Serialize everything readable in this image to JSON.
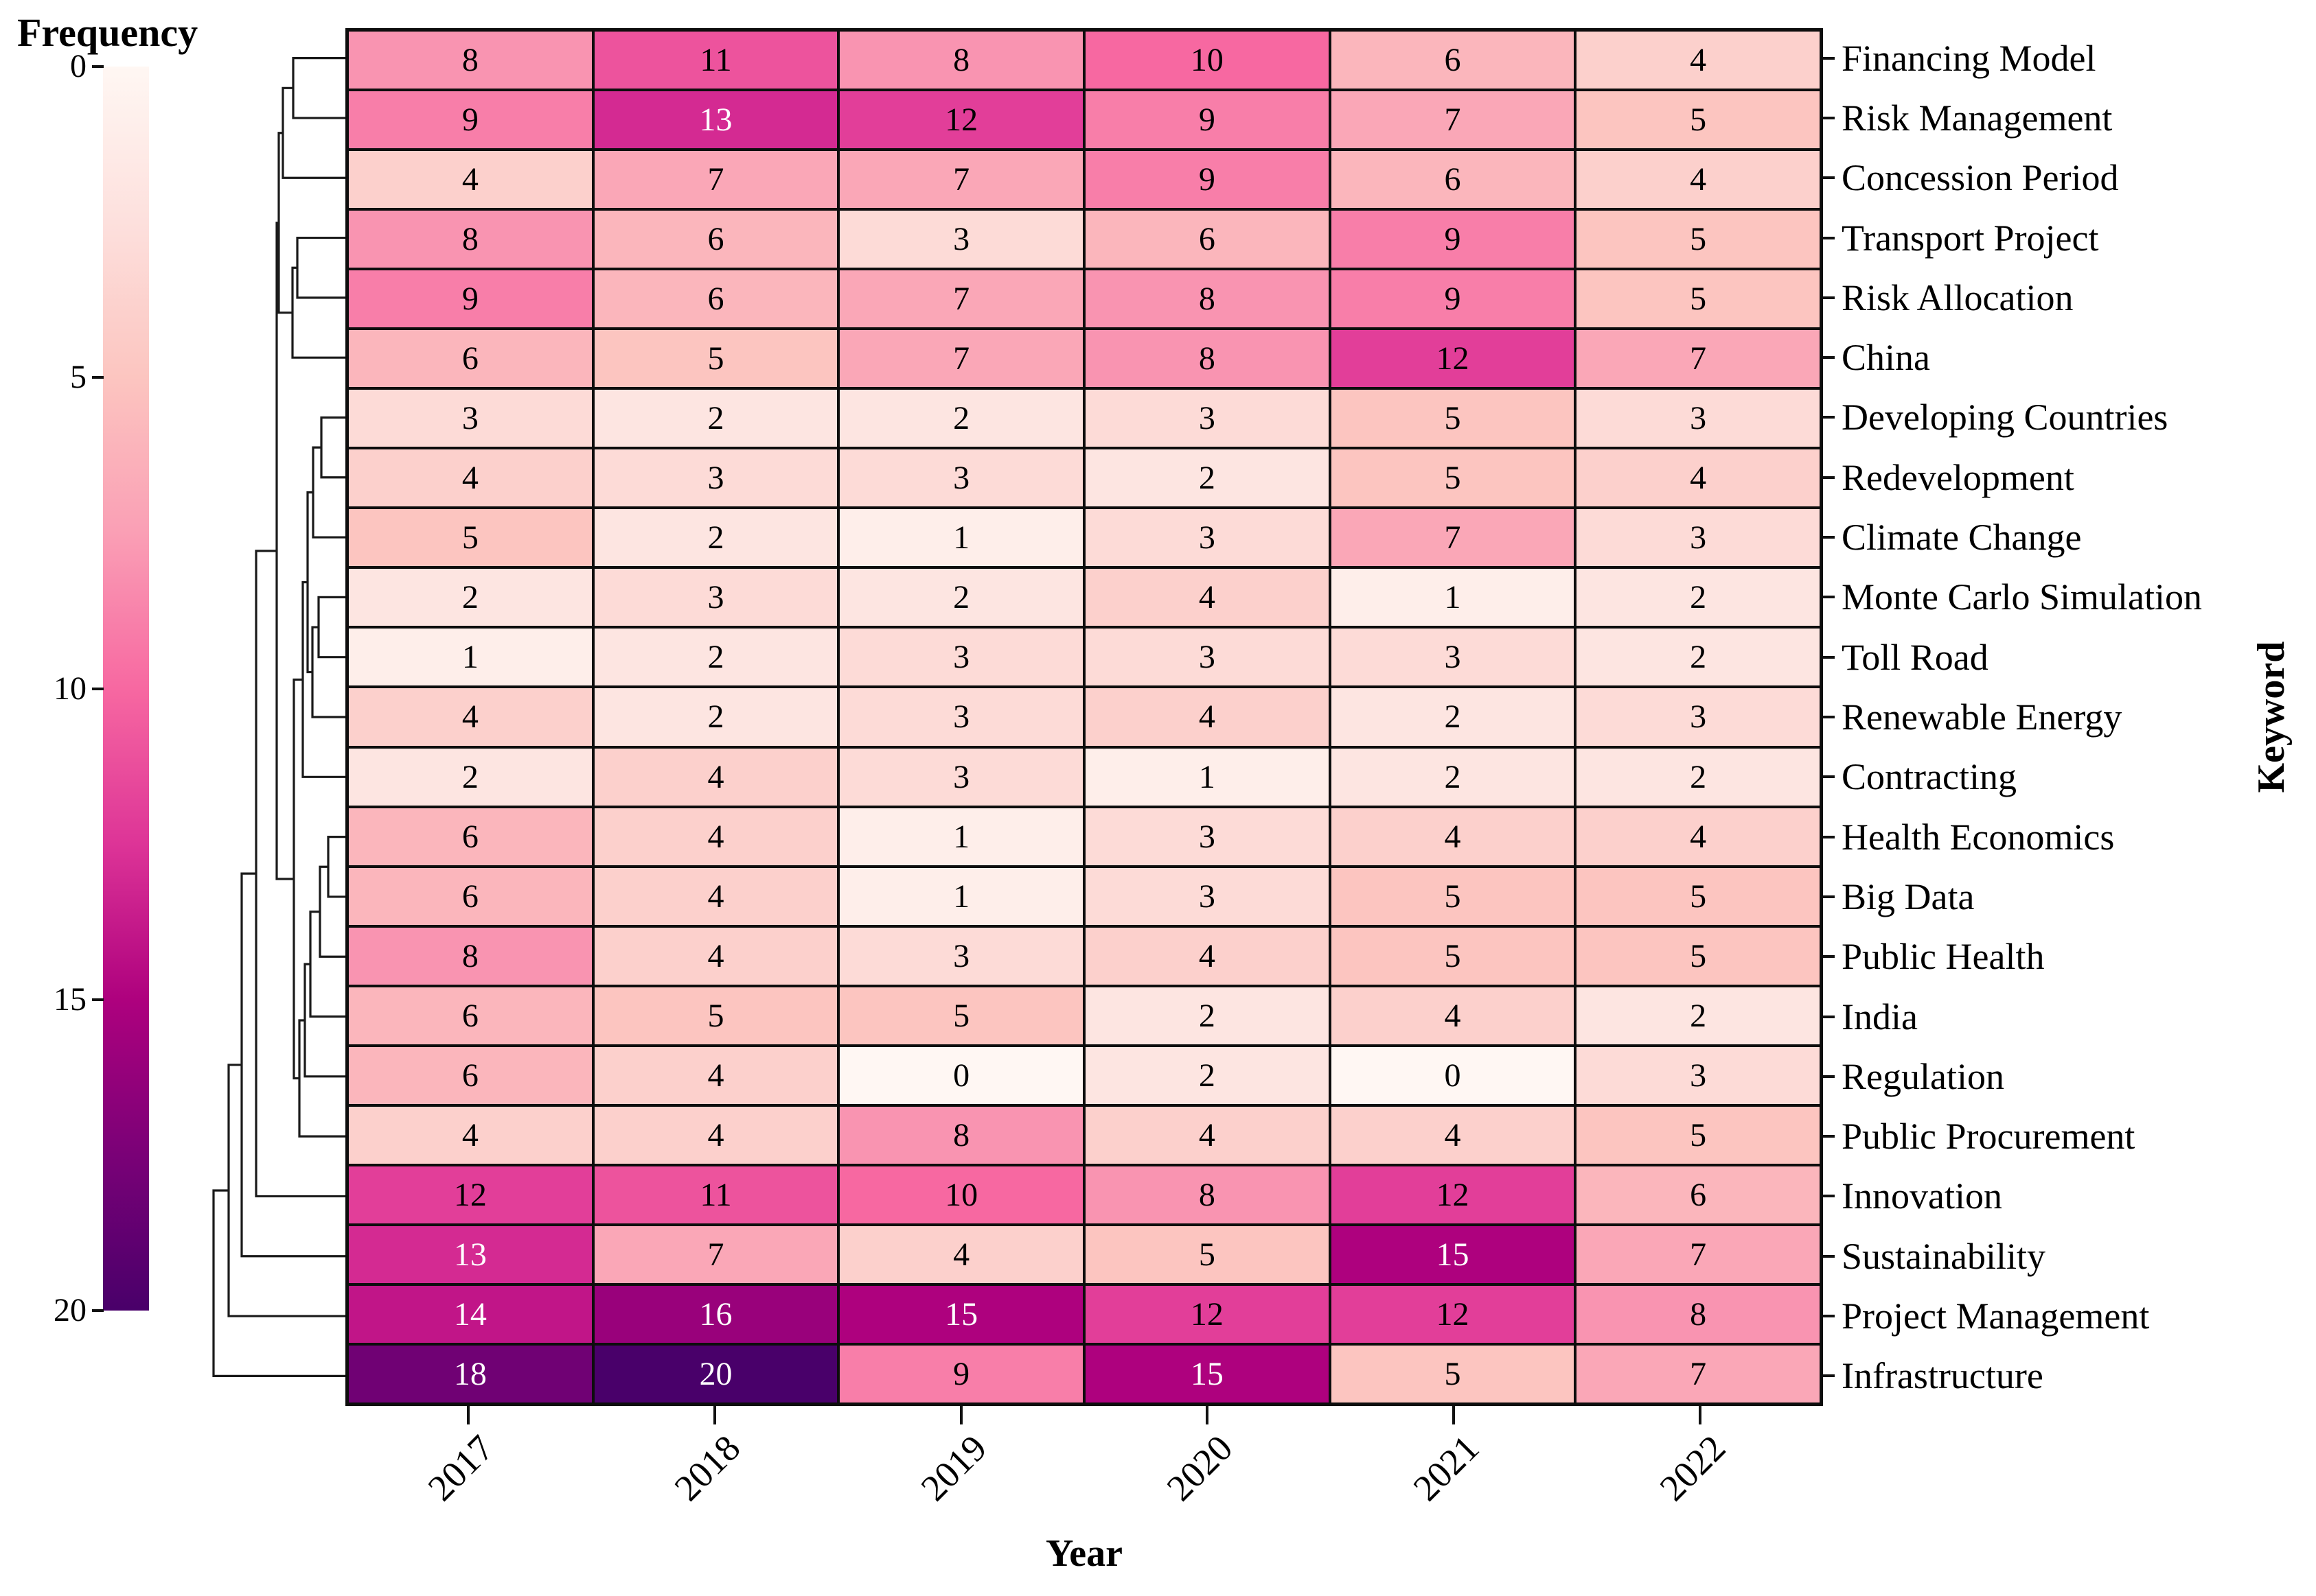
{
  "figure": {
    "colorbar_title": "Frequency",
    "xlabel": "Year",
    "ylabel": "Keyword"
  },
  "chart_data": {
    "type": "heatmap",
    "title": "",
    "xlabel": "Year",
    "ylabel": "Keyword",
    "x_categories": [
      "2017",
      "2018",
      "2019",
      "2020",
      "2021",
      "2022"
    ],
    "y_categories": [
      "Financing Model",
      "Risk Management",
      "Concession Period",
      "Transport Project",
      "Risk Allocation",
      "China",
      "Developing Countries",
      "Redevelopment",
      "Climate Change",
      "Monte Carlo Simulation",
      "Toll Road",
      "Renewable Energy",
      "Contracting",
      "Health Economics",
      "Big Data",
      "Public Health",
      "India",
      "Regulation",
      "Public Procurement",
      "Innovation",
      "Sustainability",
      "Project Management",
      "Infrastructure"
    ],
    "values": [
      [
        8,
        11,
        8,
        10,
        6,
        4
      ],
      [
        9,
        13,
        12,
        9,
        7,
        5
      ],
      [
        4,
        7,
        7,
        9,
        6,
        4
      ],
      [
        8,
        6,
        3,
        6,
        9,
        5
      ],
      [
        9,
        6,
        7,
        8,
        9,
        5
      ],
      [
        6,
        5,
        7,
        8,
        12,
        7
      ],
      [
        3,
        2,
        2,
        3,
        5,
        3
      ],
      [
        4,
        3,
        3,
        2,
        5,
        4
      ],
      [
        5,
        2,
        1,
        3,
        7,
        3
      ],
      [
        2,
        3,
        2,
        4,
        1,
        2
      ],
      [
        1,
        2,
        3,
        3,
        3,
        2
      ],
      [
        4,
        2,
        3,
        4,
        2,
        3
      ],
      [
        2,
        4,
        3,
        1,
        2,
        2
      ],
      [
        6,
        4,
        1,
        3,
        4,
        4
      ],
      [
        6,
        4,
        1,
        3,
        5,
        5
      ],
      [
        8,
        4,
        3,
        4,
        5,
        5
      ],
      [
        6,
        5,
        5,
        2,
        4,
        2
      ],
      [
        6,
        4,
        0,
        2,
        0,
        3
      ],
      [
        4,
        4,
        8,
        4,
        4,
        5
      ],
      [
        12,
        11,
        10,
        8,
        12,
        6
      ],
      [
        13,
        7,
        4,
        5,
        15,
        7
      ],
      [
        14,
        16,
        15,
        12,
        12,
        8
      ],
      [
        18,
        20,
        9,
        15,
        5,
        7
      ]
    ],
    "value_range": [
      0,
      20
    ],
    "grid": true,
    "legend_position": "left",
    "colorbar": {
      "label": "Frequency",
      "min": 0,
      "max": 20,
      "ticks": [
        0,
        5,
        10,
        15,
        20
      ],
      "colormap_name": "RdPu",
      "colormap_stops": [
        {
          "t": 0.0,
          "c": "#fff7f3"
        },
        {
          "t": 0.125,
          "c": "#fde0dd"
        },
        {
          "t": 0.25,
          "c": "#fcc5c0"
        },
        {
          "t": 0.375,
          "c": "#fa9fb5"
        },
        {
          "t": 0.5,
          "c": "#f768a1"
        },
        {
          "t": 0.625,
          "c": "#dd3497"
        },
        {
          "t": 0.75,
          "c": "#ae017e"
        },
        {
          "t": 0.875,
          "c": "#7a0177"
        },
        {
          "t": 1.0,
          "c": "#49006a"
        }
      ]
    },
    "cell_label_white_min": 13,
    "row_dendrogram": {
      "leaf_count": 23,
      "merges": [
        [
          "L0",
          "L1",
          427
        ],
        [
          "m1",
          "L2",
          412
        ],
        [
          "L3",
          "L4",
          433
        ],
        [
          "m3",
          "L5",
          426
        ],
        [
          "m2",
          "m4",
          406
        ],
        [
          "L6",
          "L7",
          468
        ],
        [
          "m6",
          "L8",
          456
        ],
        [
          "L9",
          "L10",
          464
        ],
        [
          "m8",
          "L11",
          455
        ],
        [
          "m7",
          "m9",
          448
        ],
        [
          "m10",
          "L12",
          441
        ],
        [
          "L13",
          "L14",
          478
        ],
        [
          "m12",
          "L15",
          466
        ],
        [
          "m13",
          "L16",
          452
        ],
        [
          "m14",
          "L17",
          444
        ],
        [
          "m15",
          "L18",
          436
        ],
        [
          "m11",
          "m16",
          428
        ],
        [
          "m5",
          "m17",
          403
        ],
        [
          "m18",
          "L19",
          373
        ],
        [
          "m19",
          "L20",
          352
        ],
        [
          "m20",
          "L21",
          333
        ],
        [
          "m21",
          "L22",
          311
        ]
      ]
    }
  }
}
